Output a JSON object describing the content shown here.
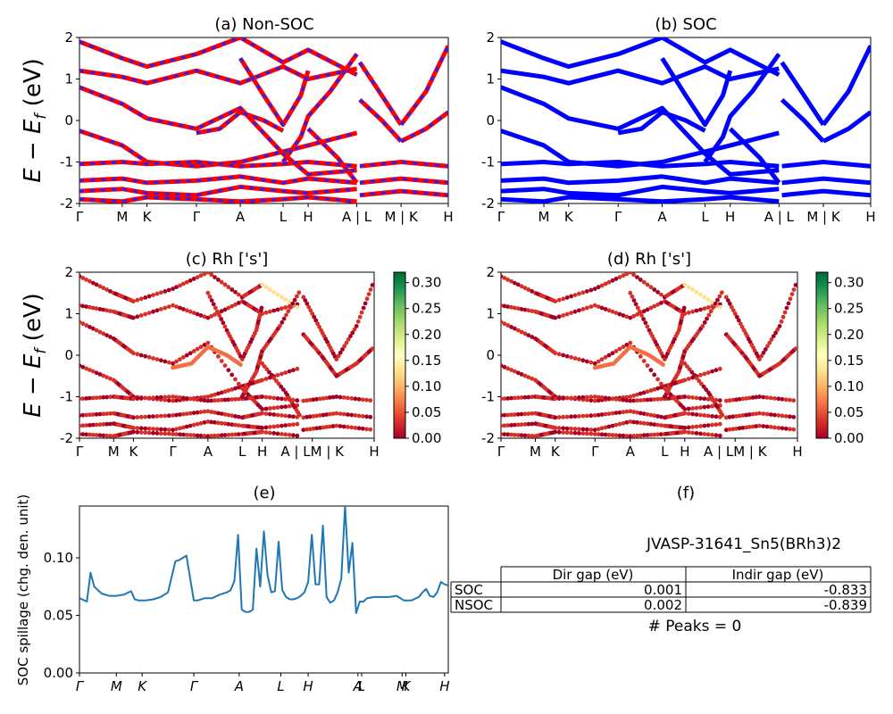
{
  "figure": {
    "material_label": "JVASP-31641_Sn5(BRh3)2",
    "peaks_label": "# Peaks = 0"
  },
  "chart_data": [
    {
      "id": "a",
      "type": "line",
      "title": "(a) Non-SOC",
      "ylabel": "E − E_f (eV)",
      "ylim": [
        -2,
        2
      ],
      "yticks": [
        -2,
        -1,
        0,
        1,
        2
      ],
      "xticks": [
        {
          "label": "Γ",
          "pos": 0.0
        },
        {
          "label": "M",
          "pos": 0.116
        },
        {
          "label": "K",
          "pos": 0.183
        },
        {
          "label": "Γ",
          "pos": 0.317
        },
        {
          "label": "A",
          "pos": 0.436
        },
        {
          "label": "L",
          "pos": 0.552
        },
        {
          "label": "H",
          "pos": 0.62
        },
        {
          "label": "A | L",
          "pos": 0.752
        },
        {
          "label": "M | K",
          "pos": 0.872
        },
        {
          "label": "H",
          "pos": 1.0
        }
      ],
      "series": [
        {
          "color": "#ff0000",
          "width": 5,
          "dash": false,
          "values": [
            {
              "x": [
                0,
                0.116,
                0.183,
                0.317,
                0.436,
                0.552,
                0.62,
                0.752
              ],
              "y": [
                -0.25,
                -0.6,
                -1.0,
                -1.1,
                -1.0,
                -0.75,
                -0.6,
                -0.3
              ]
            },
            {
              "x": [
                0,
                0.116,
                0.183,
                0.317,
                0.436,
                0.552,
                0.62,
                0.752
              ],
              "y": [
                0.8,
                0.4,
                0.05,
                -0.2,
                0.3,
                -0.8,
                -1.3,
                -1.2
              ]
            },
            {
              "x": [
                0,
                0.116,
                0.183,
                0.317,
                0.436,
                0.552,
                0.62,
                0.752
              ],
              "y": [
                1.2,
                1.05,
                0.9,
                1.2,
                0.9,
                1.3,
                1.0,
                1.25
              ]
            },
            {
              "x": [
                0,
                0.116,
                0.183,
                0.317,
                0.436,
                0.552,
                0.62,
                0.752
              ],
              "y": [
                1.9,
                1.5,
                1.3,
                1.6,
                2.0,
                1.4,
                1.7,
                1.1
              ]
            },
            {
              "x": [
                0,
                0.116,
                0.183,
                0.317,
                0.436,
                0.552,
                0.62,
                0.752
              ],
              "y": [
                -1.05,
                -1.0,
                -1.05,
                -1.0,
                -1.1,
                -1.05,
                -1.0,
                -1.1
              ]
            },
            {
              "x": [
                0,
                0.116,
                0.183,
                0.317,
                0.436,
                0.552,
                0.62,
                0.752
              ],
              "y": [
                -1.45,
                -1.4,
                -1.5,
                -1.45,
                -1.35,
                -1.5,
                -1.4,
                -1.5
              ]
            },
            {
              "x": [
                0,
                0.116,
                0.183,
                0.317,
                0.436,
                0.552,
                0.62,
                0.752
              ],
              "y": [
                -1.7,
                -1.65,
                -1.75,
                -1.8,
                -1.6,
                -1.7,
                -1.75,
                -1.65
              ]
            },
            {
              "x": [
                0,
                0.116,
                0.183,
                0.317,
                0.436,
                0.552,
                0.62,
                0.752
              ],
              "y": [
                -1.9,
                -1.95,
                -1.85,
                -1.9,
                -1.95,
                -1.9,
                -1.85,
                -1.95
              ]
            },
            {
              "x": [
                0.317,
                0.38,
                0.436,
                0.5,
                0.552
              ],
              "y": [
                -0.3,
                -0.2,
                0.2,
                0.0,
                -0.25
              ]
            },
            {
              "x": [
                0.436,
                0.5,
                0.552,
                0.6,
                0.62
              ],
              "y": [
                1.5,
                0.6,
                -0.1,
                0.6,
                1.2
              ]
            },
            {
              "x": [
                0.552,
                0.6,
                0.62,
                0.68,
                0.752
              ],
              "y": [
                -1.0,
                -0.4,
                0.1,
                0.7,
                1.6
              ]
            },
            {
              "x": [
                0.62,
                0.7,
                0.752
              ],
              "y": [
                -0.2,
                -0.9,
                -1.5
              ]
            },
            {
              "x": [
                0.76,
                0.82,
                0.872
              ],
              "y": [
                1.4,
                0.6,
                -0.1
              ]
            },
            {
              "x": [
                0.76,
                0.82,
                0.872
              ],
              "y": [
                0.5,
                0.0,
                -0.5
              ]
            },
            {
              "x": [
                0.872,
                0.94,
                1.0
              ],
              "y": [
                -0.1,
                0.7,
                1.8
              ]
            },
            {
              "x": [
                0.872,
                0.94,
                1.0
              ],
              "y": [
                -0.5,
                -0.2,
                0.2
              ]
            },
            {
              "x": [
                0.76,
                0.872,
                1.0
              ],
              "y": [
                -1.1,
                -1.0,
                -1.1
              ]
            },
            {
              "x": [
                0.76,
                0.872,
                1.0
              ],
              "y": [
                -1.5,
                -1.4,
                -1.5
              ]
            },
            {
              "x": [
                0.76,
                0.872,
                1.0
              ],
              "y": [
                -1.8,
                -1.7,
                -1.8
              ]
            }
          ]
        }
      ],
      "overlay_dash_color": "#2222ff"
    },
    {
      "id": "b",
      "type": "line",
      "title": "(b) SOC",
      "ylabel": "",
      "ylim": [
        -2,
        2
      ],
      "yticks": [
        -2,
        -1,
        0,
        1,
        2
      ],
      "xticks": [
        {
          "label": "Γ",
          "pos": 0.0
        },
        {
          "label": "M",
          "pos": 0.116
        },
        {
          "label": "K",
          "pos": 0.183
        },
        {
          "label": "Γ",
          "pos": 0.317
        },
        {
          "label": "A",
          "pos": 0.436
        },
        {
          "label": "L",
          "pos": 0.552
        },
        {
          "label": "H",
          "pos": 0.62
        },
        {
          "label": "A | L",
          "pos": 0.752
        },
        {
          "label": "M | K",
          "pos": 0.872
        },
        {
          "label": "H",
          "pos": 1.0
        }
      ],
      "series": [
        {
          "color": "#0000ff",
          "width": 5,
          "dash": false,
          "same_as": "a"
        }
      ]
    },
    {
      "id": "c",
      "type": "scatter",
      "title": "(c)  Rh ['s']",
      "ylabel": "E − E_f (eV)",
      "ylim": [
        -2,
        2
      ],
      "yticks": [
        -2,
        -1,
        0,
        1,
        2
      ],
      "xticks": [
        {
          "label": "Γ",
          "pos": 0.0
        },
        {
          "label": "M",
          "pos": 0.116
        },
        {
          "label": "K",
          "pos": 0.183
        },
        {
          "label": "Γ",
          "pos": 0.317
        },
        {
          "label": "A",
          "pos": 0.436
        },
        {
          "label": "L",
          "pos": 0.552
        },
        {
          "label": "H",
          "pos": 0.62
        },
        {
          "label": "A | LM | K",
          "pos": 0.79
        },
        {
          "label": "H",
          "pos": 1.0
        }
      ],
      "colorbar": {
        "min": 0.0,
        "max": 0.32,
        "ticks": [
          "0.00",
          "0.05",
          "0.10",
          "0.15",
          "0.20",
          "0.25",
          "0.30"
        ],
        "cmap": "RdYlGn"
      },
      "weight_default": 0.02
    },
    {
      "id": "d",
      "type": "scatter",
      "title": "(d) Rh ['s']",
      "ylabel": "",
      "ylim": [
        -2,
        2
      ],
      "yticks": [
        -2,
        -1,
        0,
        1,
        2
      ],
      "xticks": [
        {
          "label": "Γ",
          "pos": 0.0
        },
        {
          "label": "M",
          "pos": 0.116
        },
        {
          "label": "K",
          "pos": 0.183
        },
        {
          "label": "Γ",
          "pos": 0.317
        },
        {
          "label": "A",
          "pos": 0.436
        },
        {
          "label": "L",
          "pos": 0.552
        },
        {
          "label": "H",
          "pos": 0.62
        },
        {
          "label": "A | LM | K",
          "pos": 0.79
        },
        {
          "label": "H",
          "pos": 1.0
        }
      ],
      "colorbar": {
        "min": 0.0,
        "max": 0.32,
        "ticks": [
          "0.00",
          "0.05",
          "0.10",
          "0.15",
          "0.20",
          "0.25",
          "0.30"
        ],
        "cmap": "RdYlGn"
      }
    },
    {
      "id": "e",
      "type": "line",
      "title": "(e)",
      "ylabel": "SOC spillage (chg. den. unit)",
      "ylim": [
        0.0,
        0.145
      ],
      "yticks": [
        "0.00",
        "0.05",
        "0.10"
      ],
      "xticks": [
        {
          "label": "Γ",
          "pos": 0.0
        },
        {
          "label": "M",
          "pos": 0.1
        },
        {
          "label": "K",
          "pos": 0.17
        },
        {
          "label": "Γ",
          "pos": 0.31
        },
        {
          "label": "A",
          "pos": 0.433
        },
        {
          "label": "L",
          "pos": 0.546
        },
        {
          "label": "H",
          "pos": 0.62
        },
        {
          "label": "A",
          "pos": 0.755
        },
        {
          "label": "L",
          "pos": 0.765
        },
        {
          "label": "M",
          "pos": 0.875
        },
        {
          "label": "K",
          "pos": 0.885
        },
        {
          "label": "H",
          "pos": 0.99
        }
      ],
      "series": [
        {
          "name": "",
          "color": "#1f77b4",
          "x": [
            0.0,
            0.02,
            0.03,
            0.04,
            0.06,
            0.08,
            0.1,
            0.12,
            0.14,
            0.15,
            0.16,
            0.18,
            0.2,
            0.22,
            0.24,
            0.26,
            0.27,
            0.29,
            0.31,
            0.32,
            0.34,
            0.36,
            0.38,
            0.4,
            0.41,
            0.42,
            0.43,
            0.44,
            0.45,
            0.46,
            0.47,
            0.48,
            0.49,
            0.5,
            0.51,
            0.52,
            0.53,
            0.54,
            0.55,
            0.56,
            0.57,
            0.58,
            0.59,
            0.6,
            0.61,
            0.62,
            0.63,
            0.64,
            0.65,
            0.66,
            0.67,
            0.68,
            0.69,
            0.7,
            0.71,
            0.72,
            0.73,
            0.74,
            0.75,
            0.76,
            0.77,
            0.78,
            0.8,
            0.82,
            0.84,
            0.86,
            0.88,
            0.9,
            0.92,
            0.93,
            0.94,
            0.95,
            0.96,
            0.97,
            0.98,
            0.99,
            1.0
          ],
          "y": [
            0.065,
            0.062,
            0.087,
            0.075,
            0.069,
            0.067,
            0.067,
            0.068,
            0.071,
            0.064,
            0.063,
            0.063,
            0.064,
            0.066,
            0.07,
            0.097,
            0.098,
            0.102,
            0.063,
            0.063,
            0.065,
            0.065,
            0.068,
            0.07,
            0.072,
            0.08,
            0.12,
            0.055,
            0.053,
            0.053,
            0.055,
            0.108,
            0.075,
            0.123,
            0.085,
            0.07,
            0.071,
            0.114,
            0.072,
            0.066,
            0.064,
            0.064,
            0.065,
            0.067,
            0.07,
            0.079,
            0.12,
            0.077,
            0.077,
            0.128,
            0.066,
            0.061,
            0.063,
            0.07,
            0.082,
            0.145,
            0.087,
            0.113,
            0.052,
            0.062,
            0.062,
            0.065,
            0.066,
            0.066,
            0.066,
            0.067,
            0.063,
            0.063,
            0.066,
            0.07,
            0.073,
            0.067,
            0.066,
            0.07,
            0.079,
            0.077,
            0.076
          ]
        }
      ]
    },
    {
      "id": "f",
      "type": "table",
      "title": "(f)",
      "columns": [
        "",
        "Dir gap (eV)",
        "Indir gap (eV)"
      ],
      "rows": [
        [
          "SOC",
          "0.001",
          "-0.833"
        ],
        [
          "NSOC",
          "0.002",
          "-0.839"
        ]
      ]
    }
  ]
}
